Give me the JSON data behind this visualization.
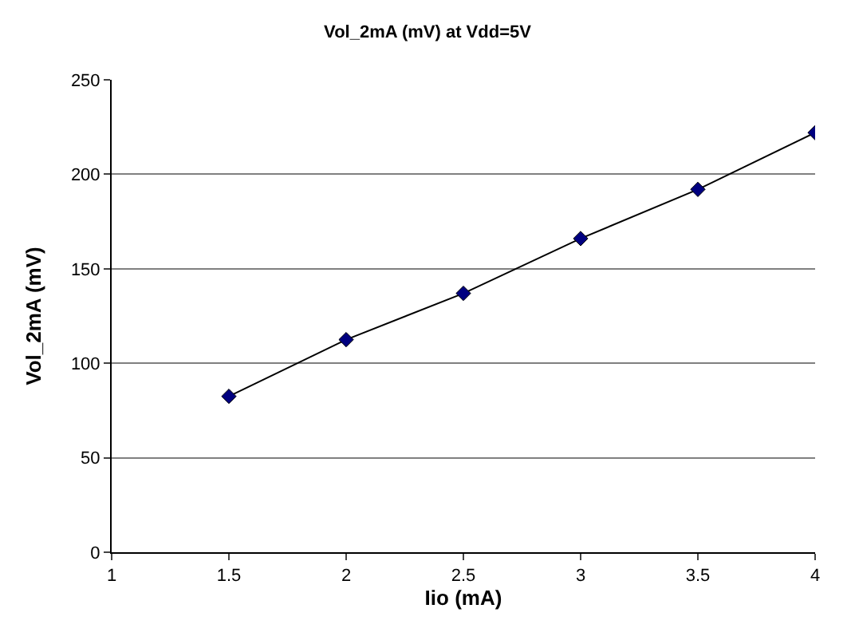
{
  "chart_data": {
    "type": "line",
    "title": "Vol_2mA (mV) at Vdd=5V",
    "xlabel": "Iio (mA)",
    "ylabel": "Vol_2mA (mV)",
    "x": [
      1.5,
      2,
      2.5,
      3,
      3.5,
      4
    ],
    "series": [
      {
        "color": "#000080",
        "values": [
          82.5,
          112.5,
          137,
          166,
          192,
          222
        ]
      }
    ],
    "xlim": [
      1,
      4
    ],
    "xticks": [
      1,
      1.5,
      2,
      2.5,
      3,
      3.5,
      4
    ],
    "ylim": [
      0,
      250
    ],
    "yticks": [
      0,
      50,
      100,
      150,
      200,
      250
    ],
    "grid": "y",
    "legend": false,
    "marker": "diamond",
    "line_style": "solid"
  }
}
